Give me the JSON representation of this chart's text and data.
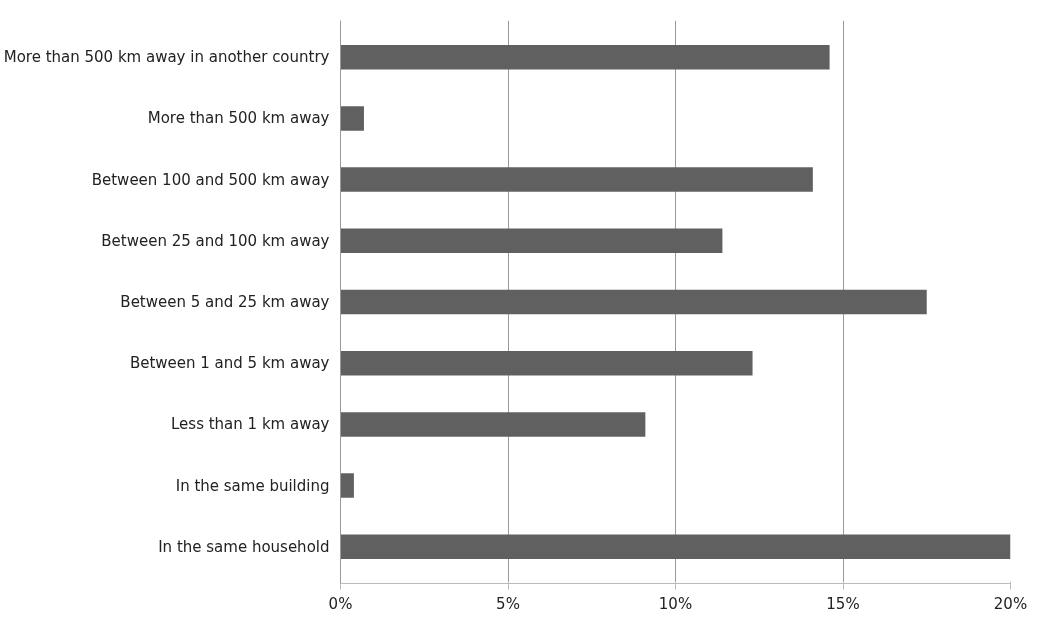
{
  "chart_data": {
    "type": "bar",
    "orientation": "horizontal",
    "categories": [
      "More than 500 km away in another country",
      "More than 500 km away",
      "Between 100 and 500 km away",
      "Between 25 and 100 km away",
      "Between 5 and 25 km away",
      "Between 1 and 5 km away",
      "Less than 1 km away",
      "In the same building",
      "In the same household"
    ],
    "values": [
      14.6,
      0.7,
      14.1,
      11.4,
      17.5,
      12.3,
      9.1,
      0.4,
      20.0
    ],
    "color": "#606060",
    "xlim": [
      0,
      20
    ],
    "xticks": [
      {
        "value": 0,
        "label": "0%"
      },
      {
        "value": 5,
        "label": "5%"
      },
      {
        "value": 10,
        "label": "10%"
      },
      {
        "value": 15,
        "label": "15%"
      },
      {
        "value": 20,
        "label": "20%"
      }
    ],
    "grid": "x"
  }
}
